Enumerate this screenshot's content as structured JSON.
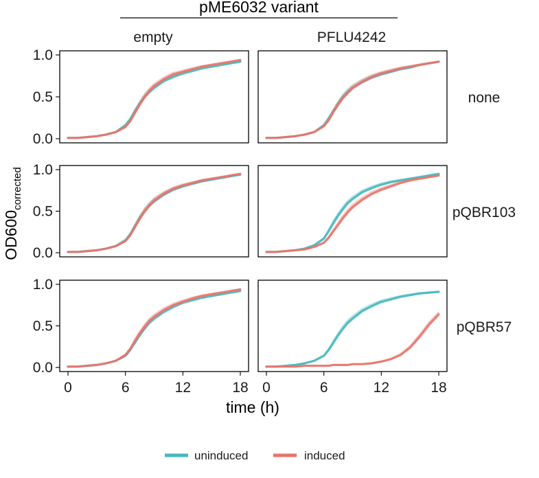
{
  "chart_data": {
    "type": "line",
    "title": "pME6032 variant",
    "xlabel": "time (h)",
    "ylabel_main": "OD600",
    "ylabel_sub": "corrected",
    "xlim": [
      0,
      18
    ],
    "ylim": [
      0,
      1.0
    ],
    "xticks": [
      0,
      6,
      12,
      18
    ],
    "yticks": [
      0.0,
      0.5,
      1.0
    ],
    "xtick_labels": [
      "0",
      "6",
      "12",
      "18"
    ],
    "ytick_labels": [
      "0.0",
      "0.5",
      "1.0"
    ],
    "columns": [
      "empty",
      "PFLU4242"
    ],
    "rows": [
      "none",
      "pQBR103",
      "pQBR57"
    ],
    "legend": [
      {
        "name": "uninduced",
        "color": "#45B8BC"
      },
      {
        "name": "induced",
        "color": "#E8746C"
      }
    ],
    "legend_position": "bottom",
    "grid": false,
    "x": [
      0,
      1,
      2,
      3,
      4,
      5,
      6,
      6.5,
      7,
      7.5,
      8,
      8.5,
      9,
      10,
      11,
      12,
      13,
      14,
      15,
      16,
      17,
      18
    ],
    "panels": [
      {
        "row": "none",
        "column": "empty",
        "series": [
          {
            "name": "uninduced",
            "values": [
              0.01,
              0.01,
              0.02,
              0.03,
              0.05,
              0.08,
              0.16,
              0.23,
              0.33,
              0.42,
              0.5,
              0.56,
              0.61,
              0.69,
              0.74,
              0.78,
              0.81,
              0.84,
              0.86,
              0.88,
              0.9,
              0.92
            ]
          },
          {
            "name": "induced",
            "values": [
              0.01,
              0.01,
              0.02,
              0.03,
              0.05,
              0.08,
              0.14,
              0.21,
              0.31,
              0.41,
              0.5,
              0.57,
              0.63,
              0.71,
              0.77,
              0.8,
              0.83,
              0.86,
              0.88,
              0.9,
              0.92,
              0.94
            ]
          }
        ]
      },
      {
        "row": "none",
        "column": "PFLU4242",
        "series": [
          {
            "name": "uninduced",
            "values": [
              0.01,
              0.01,
              0.02,
              0.03,
              0.05,
              0.08,
              0.16,
              0.24,
              0.33,
              0.42,
              0.5,
              0.56,
              0.61,
              0.68,
              0.73,
              0.77,
              0.8,
              0.83,
              0.85,
              0.88,
              0.9,
              0.92
            ]
          },
          {
            "name": "induced",
            "values": [
              0.01,
              0.01,
              0.02,
              0.03,
              0.05,
              0.08,
              0.15,
              0.22,
              0.32,
              0.41,
              0.49,
              0.55,
              0.61,
              0.68,
              0.74,
              0.78,
              0.81,
              0.84,
              0.86,
              0.88,
              0.9,
              0.92
            ]
          }
        ]
      },
      {
        "row": "pQBR103",
        "column": "empty",
        "series": [
          {
            "name": "uninduced",
            "values": [
              0.01,
              0.01,
              0.02,
              0.03,
              0.05,
              0.08,
              0.15,
              0.22,
              0.32,
              0.42,
              0.5,
              0.57,
              0.62,
              0.7,
              0.76,
              0.8,
              0.83,
              0.86,
              0.88,
              0.9,
              0.92,
              0.94
            ]
          },
          {
            "name": "induced",
            "values": [
              0.01,
              0.01,
              0.02,
              0.03,
              0.05,
              0.08,
              0.14,
              0.21,
              0.31,
              0.41,
              0.5,
              0.57,
              0.63,
              0.71,
              0.77,
              0.81,
              0.84,
              0.87,
              0.89,
              0.91,
              0.93,
              0.95
            ]
          }
        ]
      },
      {
        "row": "pQBR103",
        "column": "PFLU4242",
        "series": [
          {
            "name": "uninduced",
            "values": [
              0.01,
              0.01,
              0.02,
              0.03,
              0.05,
              0.09,
              0.17,
              0.26,
              0.36,
              0.45,
              0.53,
              0.6,
              0.65,
              0.73,
              0.78,
              0.82,
              0.85,
              0.87,
              0.89,
              0.91,
              0.93,
              0.95
            ]
          },
          {
            "name": "induced",
            "values": [
              0.01,
              0.01,
              0.02,
              0.03,
              0.04,
              0.07,
              0.12,
              0.18,
              0.26,
              0.34,
              0.42,
              0.49,
              0.55,
              0.64,
              0.71,
              0.76,
              0.8,
              0.84,
              0.87,
              0.89,
              0.91,
              0.93
            ]
          }
        ]
      },
      {
        "row": "pQBR57",
        "column": "empty",
        "series": [
          {
            "name": "uninduced",
            "values": [
              0.01,
              0.01,
              0.02,
              0.03,
              0.05,
              0.08,
              0.14,
              0.21,
              0.3,
              0.39,
              0.47,
              0.54,
              0.59,
              0.67,
              0.73,
              0.78,
              0.81,
              0.84,
              0.86,
              0.88,
              0.9,
              0.92
            ]
          },
          {
            "name": "induced",
            "values": [
              0.01,
              0.01,
              0.02,
              0.03,
              0.05,
              0.08,
              0.15,
              0.22,
              0.32,
              0.41,
              0.49,
              0.56,
              0.61,
              0.69,
              0.75,
              0.79,
              0.83,
              0.86,
              0.88,
              0.9,
              0.92,
              0.94
            ]
          }
        ]
      },
      {
        "row": "pQBR57",
        "column": "PFLU4242",
        "series": [
          {
            "name": "uninduced",
            "values": [
              0.01,
              0.01,
              0.02,
              0.03,
              0.05,
              0.08,
              0.14,
              0.21,
              0.3,
              0.39,
              0.47,
              0.54,
              0.59,
              0.68,
              0.74,
              0.79,
              0.82,
              0.85,
              0.87,
              0.89,
              0.9,
              0.91
            ]
          },
          {
            "name": "induced",
            "values": [
              0.01,
              0.01,
              0.01,
              0.01,
              0.02,
              0.02,
              0.02,
              0.02,
              0.03,
              0.03,
              0.03,
              0.03,
              0.04,
              0.04,
              0.05,
              0.07,
              0.1,
              0.15,
              0.24,
              0.37,
              0.52,
              0.64
            ]
          }
        ]
      }
    ]
  }
}
